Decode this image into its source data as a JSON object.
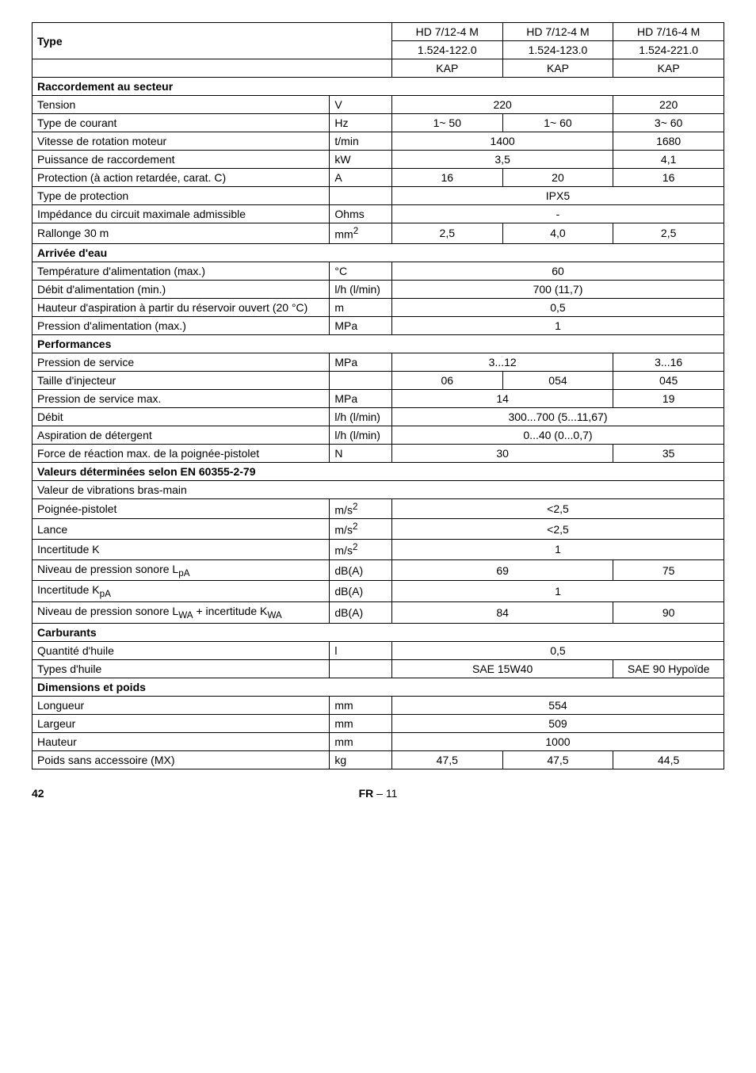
{
  "header": {
    "type_label": "Type",
    "cols": [
      "HD 7/12-4 M",
      "HD 7/12-4 M",
      "HD 7/16-4 M"
    ],
    "codes": [
      "1.524-122.0",
      "1.524-123.0",
      "1.524-221.0"
    ],
    "kap": "KAP"
  },
  "sections": {
    "raccordement": "Raccordement au secteur",
    "arrivee": "Arrivée d'eau",
    "performances": "Performances",
    "valeurs": "Valeurs déterminées selon EN 60355-2-79",
    "carburants": "Carburants",
    "dimensions": "Dimensions et poids"
  },
  "rows": {
    "tension": {
      "label": "Tension",
      "unit": "V",
      "v12": "220",
      "v3": "220"
    },
    "type_courant": {
      "label": "Type de courant",
      "unit": "Hz",
      "v1": "1~ 50",
      "v2": "1~ 60",
      "v3": "3~ 60"
    },
    "vitesse": {
      "label": "Vitesse de rotation moteur",
      "unit": "t/min",
      "v12": "1400",
      "v3": "1680"
    },
    "puissance": {
      "label": "Puissance de raccordement",
      "unit": "kW",
      "v12": "3,5",
      "v3": "4,1"
    },
    "protection": {
      "label": "Protection (à action retardée, carat. C)",
      "unit": "A",
      "v1": "16",
      "v2": "20",
      "v3": "16"
    },
    "type_prot": {
      "label": "Type de protection",
      "unit": "",
      "v123": "IPX5"
    },
    "impedance": {
      "label": "Impédance du circuit maximale admissible",
      "unit": "Ohms",
      "v123": "-"
    },
    "rallonge": {
      "label": "Rallonge 30 m",
      "unit": "mm²",
      "v1": "2,5",
      "v2": "4,0",
      "v3": "2,5"
    },
    "temp": {
      "label": "Température d'alimentation (max.)",
      "unit": "°C",
      "v123": "60"
    },
    "debit_alim": {
      "label": "Débit d'alimentation (min.)",
      "unit": "l/h (l/min)",
      "v123": "700 (11,7)"
    },
    "hauteur": {
      "label": "Hauteur d'aspiration à partir du réservoir ouvert (20 °C)",
      "unit": "m",
      "v123": "0,5"
    },
    "pression_alim": {
      "label": "Pression d'alimentation (max.)",
      "unit": "MPa",
      "v123": "1"
    },
    "pression_serv": {
      "label": "Pression de service",
      "unit": "MPa",
      "v12": "3...12",
      "v3": "3...16"
    },
    "taille": {
      "label": "Taille d'injecteur",
      "unit": "",
      "v1": "06",
      "v2": "054",
      "v3": "045"
    },
    "pression_max": {
      "label": "Pression de service max.",
      "unit": "MPa",
      "v12": "14",
      "v3": "19"
    },
    "debit": {
      "label": "Débit",
      "unit": "l/h (l/min)",
      "v123": "300...700 (5...11,67)"
    },
    "aspiration": {
      "label": "Aspiration de détergent",
      "unit": "l/h (l/min)",
      "v123": "0...40 (0...0,7)"
    },
    "force": {
      "label": "Force de réaction max. de la poignée-pistolet",
      "unit": "N",
      "v12": "30",
      "v3": "35"
    },
    "valeur_vib": {
      "label": "Valeur de vibrations bras-main"
    },
    "poignee": {
      "label": "Poignée-pistolet",
      "unit": "m/s²",
      "v123": "<2,5"
    },
    "lance": {
      "label": "Lance",
      "unit": "m/s²",
      "v123": "<2,5"
    },
    "incert_k": {
      "label": "Incertitude K",
      "unit": "m/s²",
      "v123": "1"
    },
    "niveau_lpa": {
      "label": "Niveau de pression sonore LpA",
      "unit": "dB(A)",
      "v12": "69",
      "v3": "75"
    },
    "incert_kpa": {
      "label": "Incertitude KpA",
      "unit": "dB(A)",
      "v123": "1"
    },
    "niveau_lwa": {
      "label": "Niveau de pression sonore LWA + incertitude KWA",
      "unit": "dB(A)",
      "v12": "84",
      "v3": "90"
    },
    "quantite": {
      "label": "Quantité d'huile",
      "unit": "l",
      "v123": "0,5"
    },
    "types_huile": {
      "label": "Types d'huile",
      "unit": "",
      "v12": "SAE 15W40",
      "v3": "SAE 90 Hypoïde"
    },
    "longueur": {
      "label": "Longueur",
      "unit": "mm",
      "v123": "554"
    },
    "largeur": {
      "label": "Largeur",
      "unit": "mm",
      "v123": "509"
    },
    "hauteur_dim": {
      "label": "Hauteur",
      "unit": "mm",
      "v123": "1000"
    },
    "poids": {
      "label": "Poids sans accessoire (MX)",
      "unit": "kg",
      "v1": "47,5",
      "v2": "47,5",
      "v3": "44,5"
    }
  },
  "footer": {
    "page": "42",
    "lang": "FR",
    "dash": "– 11"
  }
}
